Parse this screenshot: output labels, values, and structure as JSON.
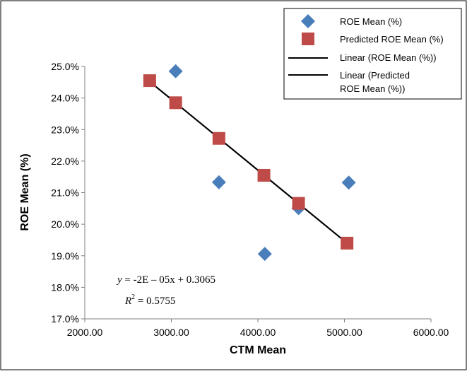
{
  "chart_data": {
    "type": "scatter",
    "xlabel": "CTM Mean",
    "ylabel": "ROE Mean (%)",
    "xlim": [
      2000,
      6000
    ],
    "ylim": [
      0.17,
      0.25
    ],
    "x_ticks": [
      "2000.00",
      "3000.00",
      "4000.00",
      "5000.00",
      "6000.00"
    ],
    "y_ticks": [
      "17.0%",
      "18.0%",
      "19.0%",
      "20.0%",
      "21.0%",
      "22.0%",
      "23.0%",
      "24.0%",
      "25.0%"
    ],
    "grid": false,
    "legend_position": "top-right",
    "series": [
      {
        "name": "ROE Mean (%)",
        "marker": "diamond",
        "color": "#4a7ebb",
        "x": [
          3050,
          3550,
          4080,
          4470,
          5050
        ],
        "y": [
          0.2485,
          0.2133,
          0.1906,
          0.2051,
          0.2132
        ]
      },
      {
        "name": "Predicted ROE Mean (%)",
        "marker": "square",
        "color": "#be4b48",
        "x": [
          2750,
          3050,
          3550,
          4070,
          4470,
          5030
        ],
        "y": [
          0.2455,
          0.2385,
          0.2272,
          0.2155,
          0.2066,
          0.194
        ]
      }
    ],
    "trendlines": [
      {
        "name": "Linear (ROE Mean (%))",
        "color": "#000000",
        "x": [
          2750,
          5030
        ],
        "y": [
          0.2452,
          0.194
        ]
      },
      {
        "name": "Linear (Predicted\nROE Mean (%))",
        "color": "#000000",
        "x": [
          2750,
          5030
        ],
        "y": [
          0.2452,
          0.194
        ]
      }
    ],
    "legend": [
      {
        "label": "ROE Mean (%)",
        "symbol": "diamond",
        "color": "#4a7ebb"
      },
      {
        "label": "Predicted ROE Mean (%)",
        "symbol": "square",
        "color": "#be4b48"
      },
      {
        "label": "Linear (ROE Mean (%))",
        "symbol": "line",
        "color": "#000000"
      },
      {
        "label_lines": [
          "Linear (Predicted",
          "ROE Mean (%))"
        ],
        "symbol": "line",
        "color": "#000000"
      }
    ],
    "annotations": {
      "equation_y": "y",
      "equation_rest": " = -2E – 05x + 0.3065",
      "r2_label": "R",
      "r2_sup": "2",
      "r2_value": " = 0.5755"
    }
  }
}
